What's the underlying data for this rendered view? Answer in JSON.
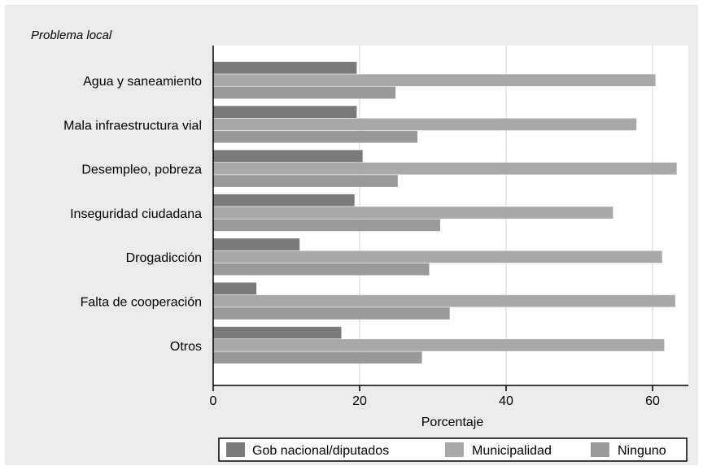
{
  "chart_data": {
    "type": "bar",
    "orientation": "horizontal",
    "group_title": "Problema local",
    "categories": [
      "Agua y saneamiento",
      "Mala infraestructura vial",
      "Desempleo, pobreza",
      "Inseguridad ciudadana",
      "Drogadicción",
      "Falta de cooperación",
      "Otros"
    ],
    "series": [
      {
        "name": "Gob nacional/diputados",
        "color": "#7a7a7a",
        "values": [
          19.6,
          19.6,
          20.4,
          19.3,
          11.8,
          5.9,
          17.5
        ]
      },
      {
        "name": "Municipalidad",
        "color": "#a8a8a8",
        "values": [
          60.4,
          57.8,
          63.3,
          54.6,
          61.3,
          63.1,
          61.6
        ]
      },
      {
        "name": "Ninguno",
        "color": "#999999",
        "values": [
          24.9,
          27.9,
          25.2,
          31.0,
          29.5,
          32.3,
          28.5
        ]
      }
    ],
    "xlabel": "Porcentaje",
    "xlim": [
      0,
      64
    ],
    "xticks": [
      0,
      20,
      40,
      60
    ],
    "grid": true,
    "legend_position": "bottom"
  }
}
